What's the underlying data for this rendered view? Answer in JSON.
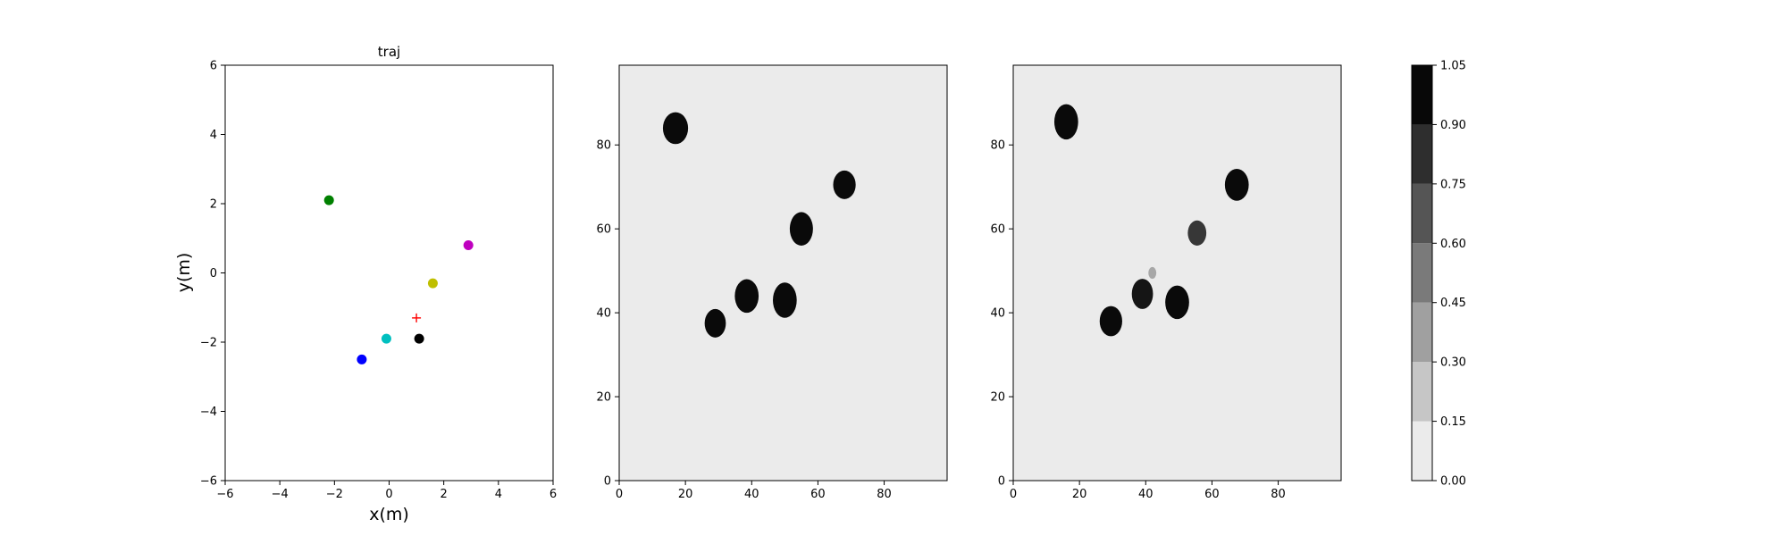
{
  "chart_data": [
    {
      "type": "scatter",
      "title": "traj",
      "xlabel": "x(m)",
      "ylabel": "y(m)",
      "xlim": [
        -6,
        6
      ],
      "ylim": [
        -6,
        6
      ],
      "xticks": [
        -6,
        -4,
        -2,
        0,
        2,
        4,
        6
      ],
      "yticks": [
        -6,
        -4,
        -2,
        0,
        2,
        4,
        6
      ],
      "grid": false,
      "points": [
        {
          "x": -2.2,
          "y": 2.1,
          "color": "#008000",
          "marker": "circle"
        },
        {
          "x": 2.9,
          "y": 0.8,
          "color": "#bf00bf",
          "marker": "circle"
        },
        {
          "x": 1.6,
          "y": -0.3,
          "color": "#bfbf00",
          "marker": "circle"
        },
        {
          "x": -0.1,
          "y": -1.9,
          "color": "#00bfbf",
          "marker": "circle"
        },
        {
          "x": 1.1,
          "y": -1.9,
          "color": "#000000",
          "marker": "circle"
        },
        {
          "x": -1.0,
          "y": -2.5,
          "color": "#0000ff",
          "marker": "circle"
        },
        {
          "x": 1.0,
          "y": -1.3,
          "color": "#ff0000",
          "marker": "plus"
        }
      ]
    },
    {
      "type": "heatmap",
      "title": "",
      "xlim": [
        0,
        99
      ],
      "ylim": [
        0,
        99
      ],
      "xticks": [
        0,
        20,
        40,
        60,
        80
      ],
      "yticks": [
        0,
        20,
        40,
        60,
        80
      ],
      "background_color": "#ebebeb",
      "blobs": [
        {
          "x": 17,
          "y": 84,
          "rx": 3.8,
          "ry": 3.8,
          "opacity": 1.0
        },
        {
          "x": 68,
          "y": 70.5,
          "rx": 3.4,
          "ry": 3.4,
          "opacity": 1.0
        },
        {
          "x": 55,
          "y": 60,
          "rx": 3.5,
          "ry": 4.0,
          "opacity": 1.0
        },
        {
          "x": 38.5,
          "y": 44,
          "rx": 3.6,
          "ry": 4.0,
          "opacity": 1.0
        },
        {
          "x": 50,
          "y": 43,
          "rx": 3.6,
          "ry": 4.2,
          "opacity": 1.0
        },
        {
          "x": 29,
          "y": 37.5,
          "rx": 3.2,
          "ry": 3.4,
          "opacity": 1.0
        }
      ]
    },
    {
      "type": "heatmap",
      "title": "",
      "xlim": [
        0,
        99
      ],
      "ylim": [
        0,
        99
      ],
      "xticks": [
        0,
        20,
        40,
        60,
        80
      ],
      "yticks": [
        0,
        20,
        40,
        60,
        80
      ],
      "background_color": "#ebebeb",
      "blobs": [
        {
          "x": 16,
          "y": 85.5,
          "rx": 3.6,
          "ry": 4.2,
          "opacity": 1.0
        },
        {
          "x": 67.5,
          "y": 70.5,
          "rx": 3.6,
          "ry": 3.8,
          "opacity": 1.0
        },
        {
          "x": 55.5,
          "y": 59,
          "rx": 2.8,
          "ry": 3.0,
          "opacity": 0.8
        },
        {
          "x": 39,
          "y": 44.5,
          "rx": 3.2,
          "ry": 3.6,
          "opacity": 0.95
        },
        {
          "x": 42,
          "y": 49.5,
          "rx": 1.2,
          "ry": 1.4,
          "opacity": 0.3
        },
        {
          "x": 49.5,
          "y": 42.5,
          "rx": 3.6,
          "ry": 4.0,
          "opacity": 1.0
        },
        {
          "x": 29.5,
          "y": 38,
          "rx": 3.4,
          "ry": 3.6,
          "opacity": 1.0
        }
      ]
    }
  ],
  "colorbar": {
    "ticks": [
      "0.00",
      "0.15",
      "0.30",
      "0.45",
      "0.60",
      "0.75",
      "0.90",
      "1.05"
    ],
    "band_colors": [
      "#ebebeb",
      "#c6c6c6",
      "#a0a0a0",
      "#7a7a7a",
      "#555555",
      "#2e2e2e",
      "#080808"
    ]
  }
}
